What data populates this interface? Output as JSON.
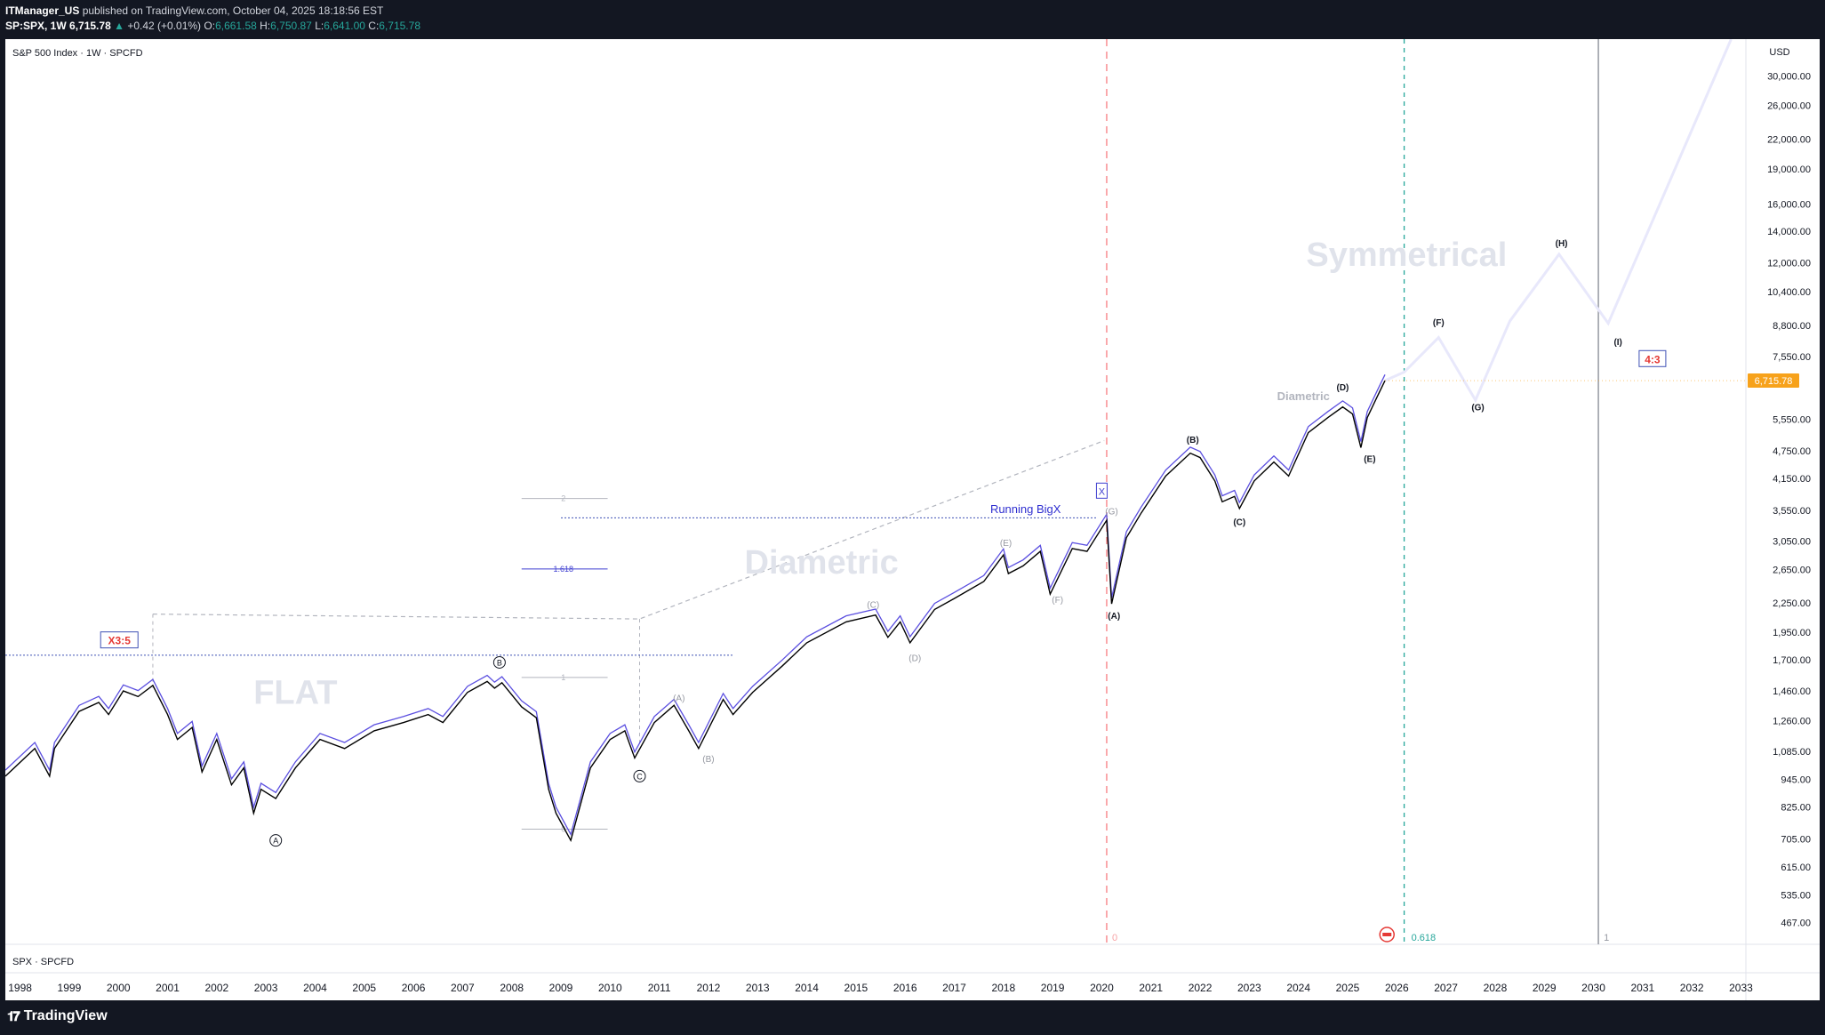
{
  "header": {
    "author": "ITManager_US",
    "published_text": "published on TradingView.com, October 04, 2025 18:18:56 EST",
    "symbol": "SP:SPX, 1W",
    "last": "6,715.78",
    "change_arrow": "▲",
    "change": "+0.42 (+0.01%)",
    "o_label": "O:",
    "o": "6,661.58",
    "h_label": "H:",
    "h": "6,750.87",
    "l_label": "L:",
    "l": "6,641.00",
    "c_label": "C:",
    "c": "6,715.78"
  },
  "chart_title": "S&P 500 Index · 1W · SPCFD",
  "symbol_footer": "SPX · SPCFD",
  "brand": "TradingView",
  "currency": "USD",
  "price_badge": "6,715.78",
  "colors": {
    "price_line": "#000000",
    "ma_line": "#5b4fe0",
    "projection": "#e8e8fb",
    "badge": "#f7a21b",
    "red_vline": "#f77c80",
    "teal_vline": "#26a69a"
  },
  "chart_data": {
    "type": "line",
    "y_scale": "log",
    "ylim": [
      420,
      36000
    ],
    "xlim": [
      1997.7,
      2033.1
    ],
    "x_ticks": [
      "1998",
      "1999",
      "2000",
      "2001",
      "2002",
      "2003",
      "2004",
      "2005",
      "2006",
      "2007",
      "2008",
      "2009",
      "2010",
      "2011",
      "2012",
      "2013",
      "2014",
      "2015",
      "2016",
      "2017",
      "2018",
      "2019",
      "2020",
      "2021",
      "2022",
      "2023",
      "2024",
      "2025",
      "2026",
      "2027",
      "2028",
      "2029",
      "2030",
      "2031",
      "2032",
      "2033"
    ],
    "y_ticks": [
      "30,000.00",
      "26,000.00",
      "22,000.00",
      "19,000.00",
      "16,000.00",
      "14,000.00",
      "12,000.00",
      "10,400.00",
      "8,800.00",
      "7,550.00",
      "5,550.00",
      "4,750.00",
      "4,150.00",
      "3,550.00",
      "3,050.00",
      "2,650.00",
      "2,250.00",
      "1,950.00",
      "1,700.00",
      "1,460.00",
      "1,260.00",
      "1,085.00",
      "945.00",
      "825.00",
      "705.00",
      "615.00",
      "535.00",
      "467.00"
    ],
    "series": [
      {
        "x": [
          1997.7,
          1998.3,
          1998.6,
          1998.7,
          1999.2,
          1999.6,
          1999.8,
          2000.1,
          2000.4,
          2000.7,
          2001.0,
          2001.2,
          2001.5,
          2001.7,
          2002.0,
          2002.3,
          2002.55,
          2002.75,
          2002.9,
          2003.2,
          2003.6,
          2004.1,
          2004.6,
          2005.2,
          2005.8,
          2006.3,
          2006.6,
          2007.1,
          2007.5,
          2007.65,
          2007.8,
          2008.2,
          2008.5,
          2008.75,
          2008.9,
          2009.2,
          2009.6,
          2010.0,
          2010.3,
          2010.5,
          2010.9,
          2011.3,
          2011.6,
          2011.8,
          2012.3,
          2012.5,
          2012.9,
          2013.5,
          2014.0,
          2014.8,
          2015.4,
          2015.65,
          2015.9,
          2016.1,
          2016.6,
          2017.0,
          2017.6,
          2018.0,
          2018.1,
          2018.4,
          2018.75,
          2018.95,
          2019.4,
          2019.7,
          2020.1,
          2020.2,
          2020.5,
          2020.8,
          2021.3,
          2021.8,
          2022.0,
          2022.3,
          2022.45,
          2022.7,
          2022.8,
          2023.1,
          2023.5,
          2023.8,
          2024.2,
          2024.6,
          2024.9,
          2025.1,
          2025.27,
          2025.4,
          2025.6,
          2025.76
        ],
        "values": [
          960,
          1100,
          960,
          1100,
          1320,
          1380,
          1300,
          1460,
          1420,
          1500,
          1300,
          1150,
          1220,
          980,
          1150,
          920,
          1000,
          800,
          900,
          860,
          1000,
          1150,
          1100,
          1200,
          1250,
          1300,
          1250,
          1450,
          1530,
          1480,
          1520,
          1350,
          1280,
          900,
          800,
          700,
          1000,
          1150,
          1200,
          1050,
          1250,
          1360,
          1200,
          1100,
          1400,
          1300,
          1450,
          1650,
          1850,
          2050,
          2120,
          1900,
          2050,
          1850,
          2180,
          2300,
          2500,
          2850,
          2600,
          2700,
          2900,
          2350,
          2940,
          2900,
          3380,
          2240,
          3100,
          3500,
          4200,
          4700,
          4600,
          4100,
          3700,
          3800,
          3580,
          4100,
          4500,
          4200,
          5200,
          5600,
          5900,
          5700,
          4830,
          5600,
          6200,
          6715
        ]
      },
      {
        "x": [
          2025.76,
          2026.15,
          2026.85,
          2027.6,
          2028.3,
          2029.3,
          2030.3,
          2032.8
        ],
        "values": [
          6715,
          7000,
          8300,
          6100,
          9000,
          12500,
          8900,
          36000
        ]
      }
    ],
    "annotations": {
      "flat": "FLAT",
      "diametric_big": "Diametric",
      "diametric_small": "Diametric",
      "symmetrical": "Symmetrical",
      "running_bigx": "Running BigX",
      "x_box": "X",
      "x35": "X3:5",
      "r43": "4:3",
      "fib_2": "2",
      "fib_1618": "1.618",
      "fib_1": "1",
      "fib_0": "0",
      "ratio_0618": "0.618",
      "vline_red_label": "0",
      "vline_gray_label": "1",
      "circle_A": "A",
      "circle_B": "B",
      "circle_C": "C",
      "grey_A": "(A)",
      "grey_B": "(B)",
      "grey_C": "(C)",
      "grey_D": "(D)",
      "grey_E": "(E)",
      "grey_F": "(F)",
      "grey_G": "(G)",
      "A": "(A)",
      "B": "(B)",
      "C": "(C)",
      "D": "(D)",
      "E": "(E)",
      "F": "(F)",
      "G": "(G)",
      "H": "(H)",
      "I": "(I)"
    }
  }
}
